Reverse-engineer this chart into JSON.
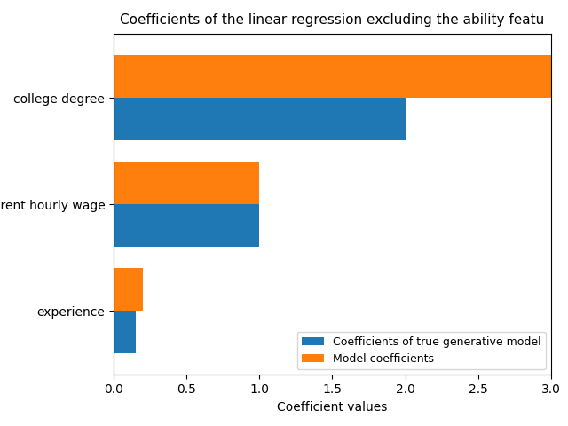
{
  "title": "Coefficients of the linear regression excluding the ability featu",
  "categories": [
    "experience",
    "parent hourly wage",
    "college degree"
  ],
  "true_model_values": [
    0.15,
    1.0,
    2.0
  ],
  "model_coeff_values": [
    0.2,
    1.0,
    3.0
  ],
  "true_model_color": "#1f77b4",
  "model_coeff_color": "#ff7f0e",
  "xlabel": "Coefficient values",
  "legend_labels": [
    "Coefficients of true generative model",
    "Model coefficients"
  ],
  "xlim": [
    0,
    3.0
  ],
  "bar_height": 0.4,
  "figsize": [
    6.4,
    4.8
  ],
  "dpi": 100
}
